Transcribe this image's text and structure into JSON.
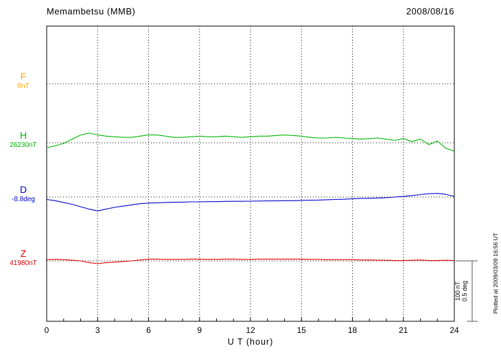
{
  "header": {
    "title": "Memambetsu (MMB)",
    "date": "2008/08/16"
  },
  "axes": {
    "xlabel": "U T (hour)"
  },
  "scale_bar": {
    "line1": "100 nT",
    "line2": "0.5 deg"
  },
  "footer_note": "Plotted at 2009/03/09 16:56 UT",
  "chart_data": {
    "type": "line",
    "title": "Memambetsu (MMB)",
    "date": "2008/08/16",
    "xlabel": "U T (hour)",
    "x_range": [
      0,
      24
    ],
    "x_step_hours": 0.5,
    "x_ticks": [
      0,
      3,
      6,
      9,
      12,
      15,
      18,
      21,
      24
    ],
    "grid": "dotted vertical every 3 h, dotted horizontal at each component baseline",
    "scale_reference": {
      "field_span": "100 nT",
      "angle_span": "0.5 deg"
    },
    "series": [
      {
        "name": "F",
        "baseline_label": "0nT",
        "baseline_value": 0,
        "unit": "nT",
        "color": "#ffa500",
        "offsets": []
      },
      {
        "name": "H",
        "baseline_label": "26230nT",
        "baseline_value": 26230,
        "unit": "nT",
        "color": "#00b400",
        "offsets": [
          -8,
          -5,
          -1,
          6,
          13,
          16,
          13,
          11,
          10,
          9,
          9,
          11,
          13,
          13,
          11,
          9,
          9,
          10,
          11,
          10,
          10,
          11,
          10,
          9,
          10,
          11,
          11,
          12,
          13,
          12,
          11,
          9,
          8,
          8,
          9,
          8,
          7,
          6,
          7,
          8,
          6,
          4,
          7,
          2,
          6,
          -3,
          3,
          -9,
          -14
        ]
      },
      {
        "name": "D",
        "baseline_label": "-8.8deg",
        "baseline_value": -8.8,
        "unit": "deg",
        "color": "#0000cc",
        "offsets": [
          -0.02,
          -0.03,
          -0.045,
          -0.06,
          -0.08,
          -0.1,
          -0.115,
          -0.1,
          -0.085,
          -0.075,
          -0.065,
          -0.055,
          -0.05,
          -0.048,
          -0.045,
          -0.043,
          -0.042,
          -0.04,
          -0.04,
          -0.038,
          -0.038,
          -0.036,
          -0.035,
          -0.035,
          -0.034,
          -0.033,
          -0.032,
          -0.032,
          -0.03,
          -0.03,
          -0.028,
          -0.026,
          -0.025,
          -0.022,
          -0.02,
          -0.018,
          -0.015,
          -0.012,
          -0.01,
          -0.008,
          -0.005,
          0,
          0.005,
          0.012,
          0.02,
          0.028,
          0.03,
          0.022,
          0.005
        ]
      },
      {
        "name": "Z",
        "baseline_label": "41980nT",
        "baseline_value": 41980,
        "unit": "nT",
        "color": "#dd0000",
        "offsets": [
          2,
          2.5,
          2,
          1,
          0,
          -3,
          -4.5,
          -3,
          -2,
          -1,
          0,
          1.5,
          3,
          3,
          2.5,
          2.5,
          2.5,
          3,
          3,
          2.5,
          2.5,
          3,
          3,
          2.5,
          2.5,
          3,
          3,
          3,
          3,
          3,
          3,
          2.5,
          2.5,
          2,
          2,
          2,
          2,
          1.5,
          1.5,
          1,
          1,
          0.5,
          0.5,
          1,
          1.5,
          0.5,
          0.5,
          1,
          0.5
        ]
      }
    ]
  }
}
